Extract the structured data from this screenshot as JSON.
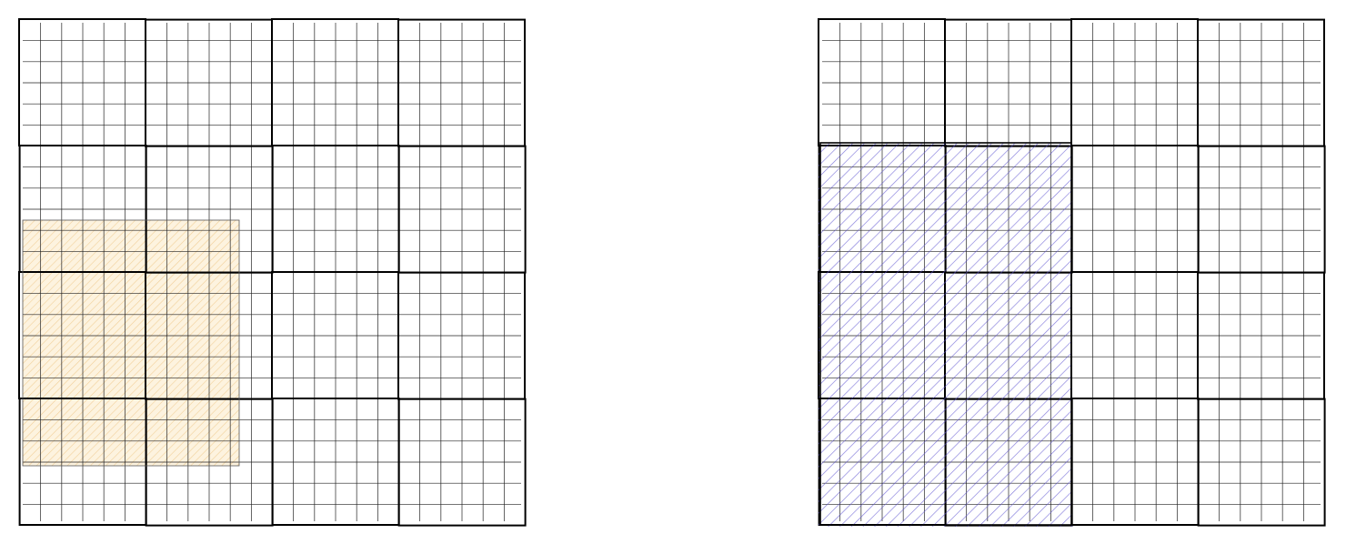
{
  "diagram": {
    "description_free": true,
    "panels": [
      {
        "id": "left",
        "blocks_per_side": 4,
        "cells_per_block": 6,
        "highlight": {
          "kind": "partial-region",
          "fill_color": "#fdf3df",
          "hatch_color": "#e9b86a",
          "border_color": "#555555"
        }
      },
      {
        "id": "right",
        "blocks_per_side": 4,
        "cells_per_block": 6,
        "highlight": {
          "kind": "aligned-blocks",
          "start_block_column": 0,
          "end_block_column": 1,
          "start_block_row": 1,
          "end_block_row": 3,
          "hatch_color": "#5a4fd0",
          "border_color": "#000000"
        }
      }
    ],
    "colors": {
      "grid_thin": "#222222",
      "grid_thick": "#000000",
      "background": "#ffffff"
    }
  }
}
